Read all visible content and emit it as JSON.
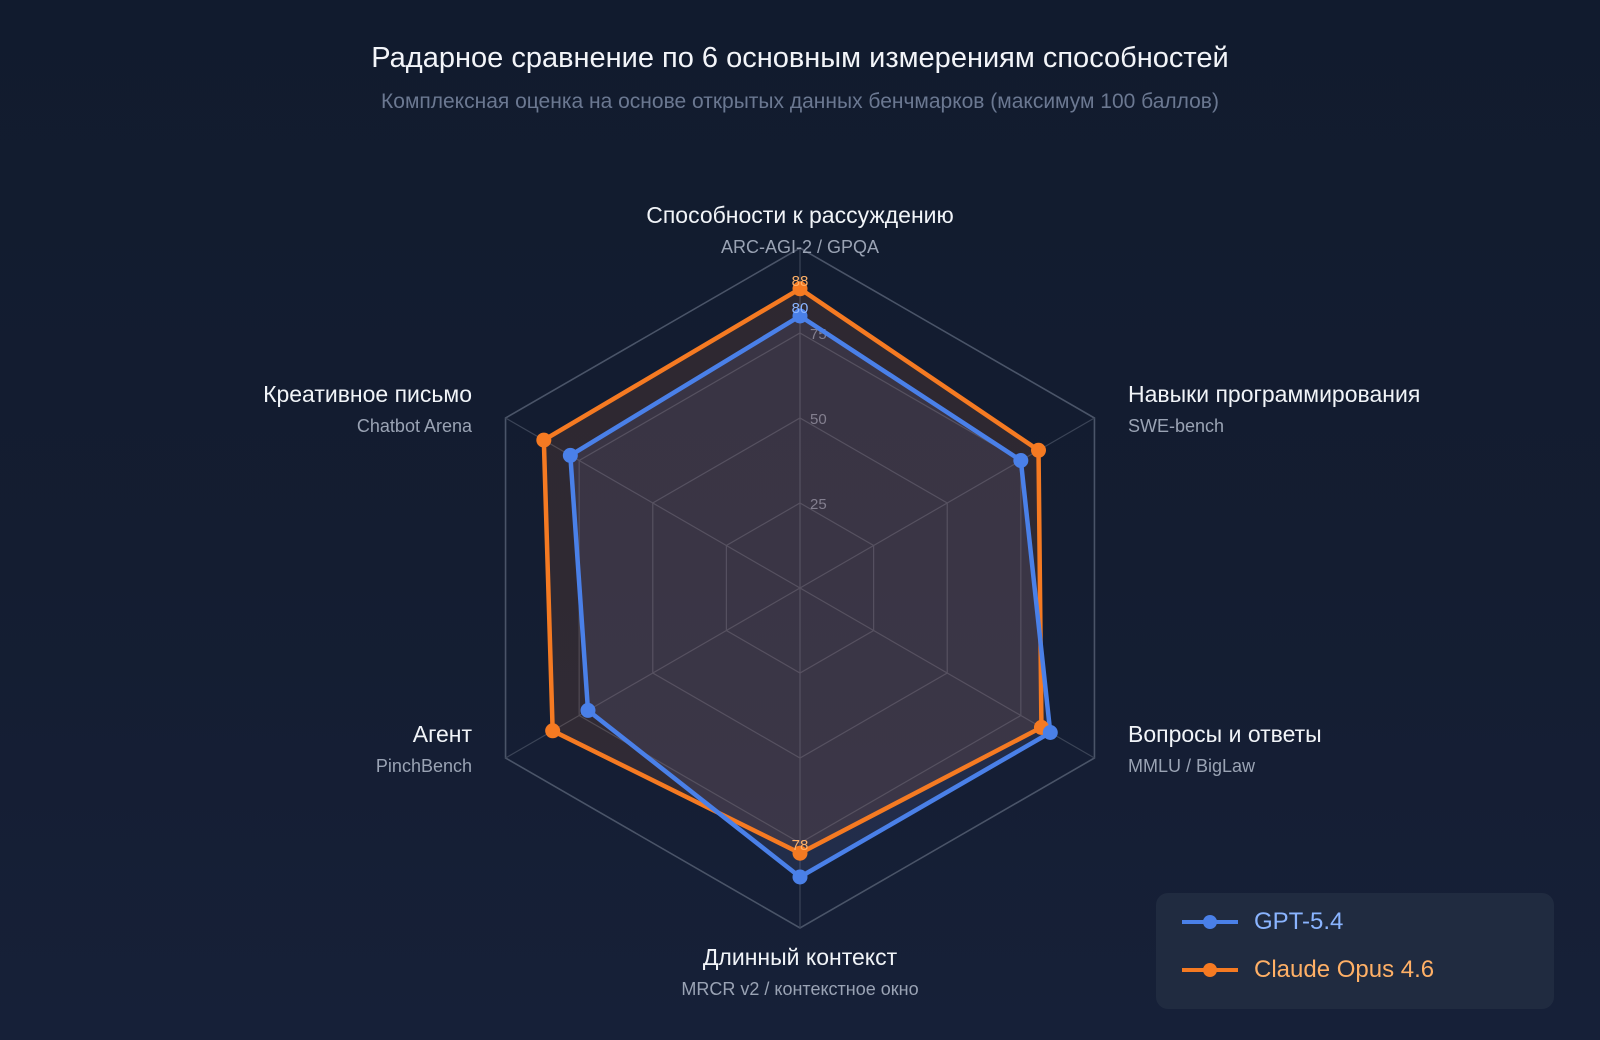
{
  "chart_data": {
    "type": "radar",
    "title": "Радарное сравнение по 6 основным измерениям способностей",
    "subtitle": "Комплексная оценка на основе открытых данных бенчмарков (максимум 100 баллов)",
    "axes": [
      {
        "name": "Способности к рассуждению",
        "source": "ARC-AGI-2 / GPQA"
      },
      {
        "name": "Навыки программирования",
        "source": "SWE-bench"
      },
      {
        "name": "Вопросы и ответы",
        "source": "MMLU / BigLaw"
      },
      {
        "name": "Длинный контекст",
        "source": "MRCR v2 / контекстное окно"
      },
      {
        "name": "Агент",
        "source": "PinchBench"
      },
      {
        "name": "Креативное письмо",
        "source": "Chatbot Arena"
      }
    ],
    "range": [
      0,
      100
    ],
    "ticks": [
      25,
      50,
      75,
      100
    ],
    "tick_labels": [
      "25",
      "50",
      "75"
    ],
    "series": [
      {
        "name": "GPT-5.4",
        "color": "#4a80e8",
        "text_color": "#8ab4ff",
        "values": [
          80,
          75,
          85,
          85,
          72,
          78
        ]
      },
      {
        "name": "Claude Opus 4.6",
        "color": "#f57a22",
        "text_color": "#ffb066",
        "values": [
          88,
          81,
          82,
          78,
          84,
          87
        ]
      }
    ],
    "value_labels": [
      {
        "series": "Claude Opus 4.6",
        "axis": 0,
        "text": "88"
      },
      {
        "series": "GPT-5.4",
        "axis": 0,
        "text": "80"
      },
      {
        "series": "Claude Opus 4.6",
        "axis": 3,
        "text": "78"
      }
    ],
    "legend_position": "bottom-right",
    "grid": true
  }
}
